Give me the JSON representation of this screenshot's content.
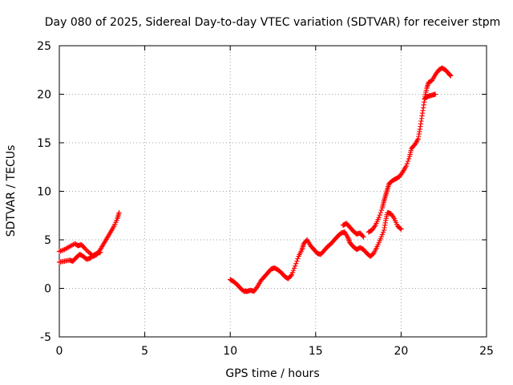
{
  "chart_data": {
    "type": "scatter",
    "title": "Day 080 of 2025, Sidereal Day-to-day VTEC variation (SDTVAR) for receiver stpm",
    "xlabel": "GPS time / hours",
    "ylabel": "SDTVAR / TECUs",
    "xlim": [
      0,
      25
    ],
    "ylim": [
      -5,
      25
    ],
    "xticks": [
      0,
      5,
      10,
      15,
      20,
      25
    ],
    "yticks": [
      -5,
      0,
      5,
      10,
      15,
      20,
      25
    ],
    "grid": true,
    "marker": "+",
    "color": "#ff0000",
    "series": [
      {
        "name": "segment-1-upper",
        "points": [
          [
            0,
            3.8
          ],
          [
            0.3,
            4.0
          ],
          [
            0.6,
            4.3
          ],
          [
            0.9,
            4.6
          ],
          [
            1.1,
            4.4
          ],
          [
            1.3,
            4.5
          ],
          [
            1.5,
            4.1
          ],
          [
            1.8,
            3.6
          ],
          [
            2.0,
            3.3
          ],
          [
            2.2,
            3.5
          ],
          [
            2.4,
            4.0
          ],
          [
            2.6,
            4.6
          ],
          [
            2.8,
            5.2
          ],
          [
            3.0,
            5.8
          ],
          [
            3.2,
            6.4
          ],
          [
            3.4,
            7.2
          ],
          [
            3.5,
            7.8
          ]
        ]
      },
      {
        "name": "segment-1-lower",
        "points": [
          [
            0,
            2.7
          ],
          [
            0.3,
            2.8
          ],
          [
            0.6,
            2.9
          ],
          [
            0.8,
            2.8
          ],
          [
            1.0,
            3.2
          ],
          [
            1.2,
            3.5
          ],
          [
            1.4,
            3.3
          ],
          [
            1.6,
            3.0
          ],
          [
            1.8,
            3.1
          ],
          [
            2.0,
            3.4
          ],
          [
            2.2,
            3.6
          ],
          [
            2.4,
            3.7
          ]
        ]
      },
      {
        "name": "segment-2",
        "points": [
          [
            10.0,
            0.9
          ],
          [
            10.2,
            0.7
          ],
          [
            10.4,
            0.4
          ],
          [
            10.6,
            0.0
          ],
          [
            10.8,
            -0.3
          ],
          [
            11.0,
            -0.3
          ],
          [
            11.2,
            -0.2
          ],
          [
            11.4,
            -0.3
          ],
          [
            11.6,
            0.2
          ],
          [
            11.8,
            0.8
          ],
          [
            12.0,
            1.2
          ],
          [
            12.2,
            1.6
          ],
          [
            12.4,
            2.0
          ],
          [
            12.6,
            2.1
          ],
          [
            12.8,
            1.9
          ],
          [
            13.0,
            1.6
          ],
          [
            13.2,
            1.2
          ],
          [
            13.4,
            1.0
          ],
          [
            13.6,
            1.4
          ],
          [
            13.8,
            2.3
          ],
          [
            14.0,
            3.3
          ],
          [
            14.2,
            4.0
          ],
          [
            14.3,
            4.6
          ],
          [
            14.5,
            5.0
          ],
          [
            14.7,
            4.4
          ],
          [
            14.9,
            4.0
          ],
          [
            15.1,
            3.6
          ],
          [
            15.3,
            3.5
          ],
          [
            15.5,
            3.9
          ],
          [
            15.7,
            4.3
          ],
          [
            15.9,
            4.6
          ],
          [
            16.1,
            5.0
          ],
          [
            16.3,
            5.4
          ],
          [
            16.5,
            5.7
          ],
          [
            16.7,
            5.8
          ],
          [
            16.9,
            5.2
          ],
          [
            17.0,
            4.7
          ],
          [
            17.2,
            4.3
          ],
          [
            17.4,
            4.0
          ],
          [
            17.6,
            4.2
          ],
          [
            17.8,
            4.0
          ],
          [
            18.0,
            3.6
          ],
          [
            18.2,
            3.3
          ],
          [
            18.4,
            3.6
          ],
          [
            18.6,
            4.3
          ],
          [
            18.8,
            5.1
          ],
          [
            19.0,
            6.0
          ],
          [
            19.1,
            7.0
          ],
          [
            19.2,
            7.8
          ],
          [
            19.4,
            7.7
          ],
          [
            19.6,
            7.2
          ],
          [
            19.8,
            6.4
          ],
          [
            20.0,
            6.1
          ]
        ]
      },
      {
        "name": "segment-2-loop",
        "points": [
          [
            16.6,
            6.5
          ],
          [
            16.8,
            6.7
          ],
          [
            17.0,
            6.3
          ],
          [
            17.2,
            5.9
          ],
          [
            17.4,
            5.6
          ],
          [
            17.6,
            5.7
          ],
          [
            17.8,
            5.3
          ]
        ]
      },
      {
        "name": "segment-3",
        "points": [
          [
            18.1,
            5.8
          ],
          [
            18.3,
            6.0
          ],
          [
            18.5,
            6.5
          ],
          [
            18.7,
            7.3
          ],
          [
            18.9,
            8.3
          ],
          [
            19.0,
            9.0
          ],
          [
            19.1,
            9.6
          ],
          [
            19.2,
            10.2
          ],
          [
            19.3,
            10.8
          ],
          [
            19.5,
            11.1
          ],
          [
            19.7,
            11.3
          ],
          [
            19.9,
            11.5
          ],
          [
            20.1,
            12.0
          ],
          [
            20.3,
            12.6
          ],
          [
            20.5,
            13.6
          ],
          [
            20.6,
            14.4
          ],
          [
            20.8,
            14.8
          ],
          [
            21.0,
            15.4
          ],
          [
            21.1,
            16.4
          ],
          [
            21.2,
            17.5
          ],
          [
            21.3,
            18.6
          ],
          [
            21.4,
            19.8
          ],
          [
            21.5,
            20.6
          ],
          [
            21.6,
            21.2
          ],
          [
            21.8,
            21.4
          ],
          [
            22.0,
            22.0
          ],
          [
            22.2,
            22.5
          ],
          [
            22.4,
            22.7
          ],
          [
            22.6,
            22.5
          ],
          [
            22.8,
            22.1
          ],
          [
            22.9,
            21.9
          ]
        ]
      },
      {
        "name": "segment-3-branch",
        "points": [
          [
            21.4,
            19.6
          ],
          [
            21.6,
            19.8
          ],
          [
            21.8,
            19.9
          ],
          [
            22.0,
            20.0
          ]
        ]
      }
    ]
  }
}
